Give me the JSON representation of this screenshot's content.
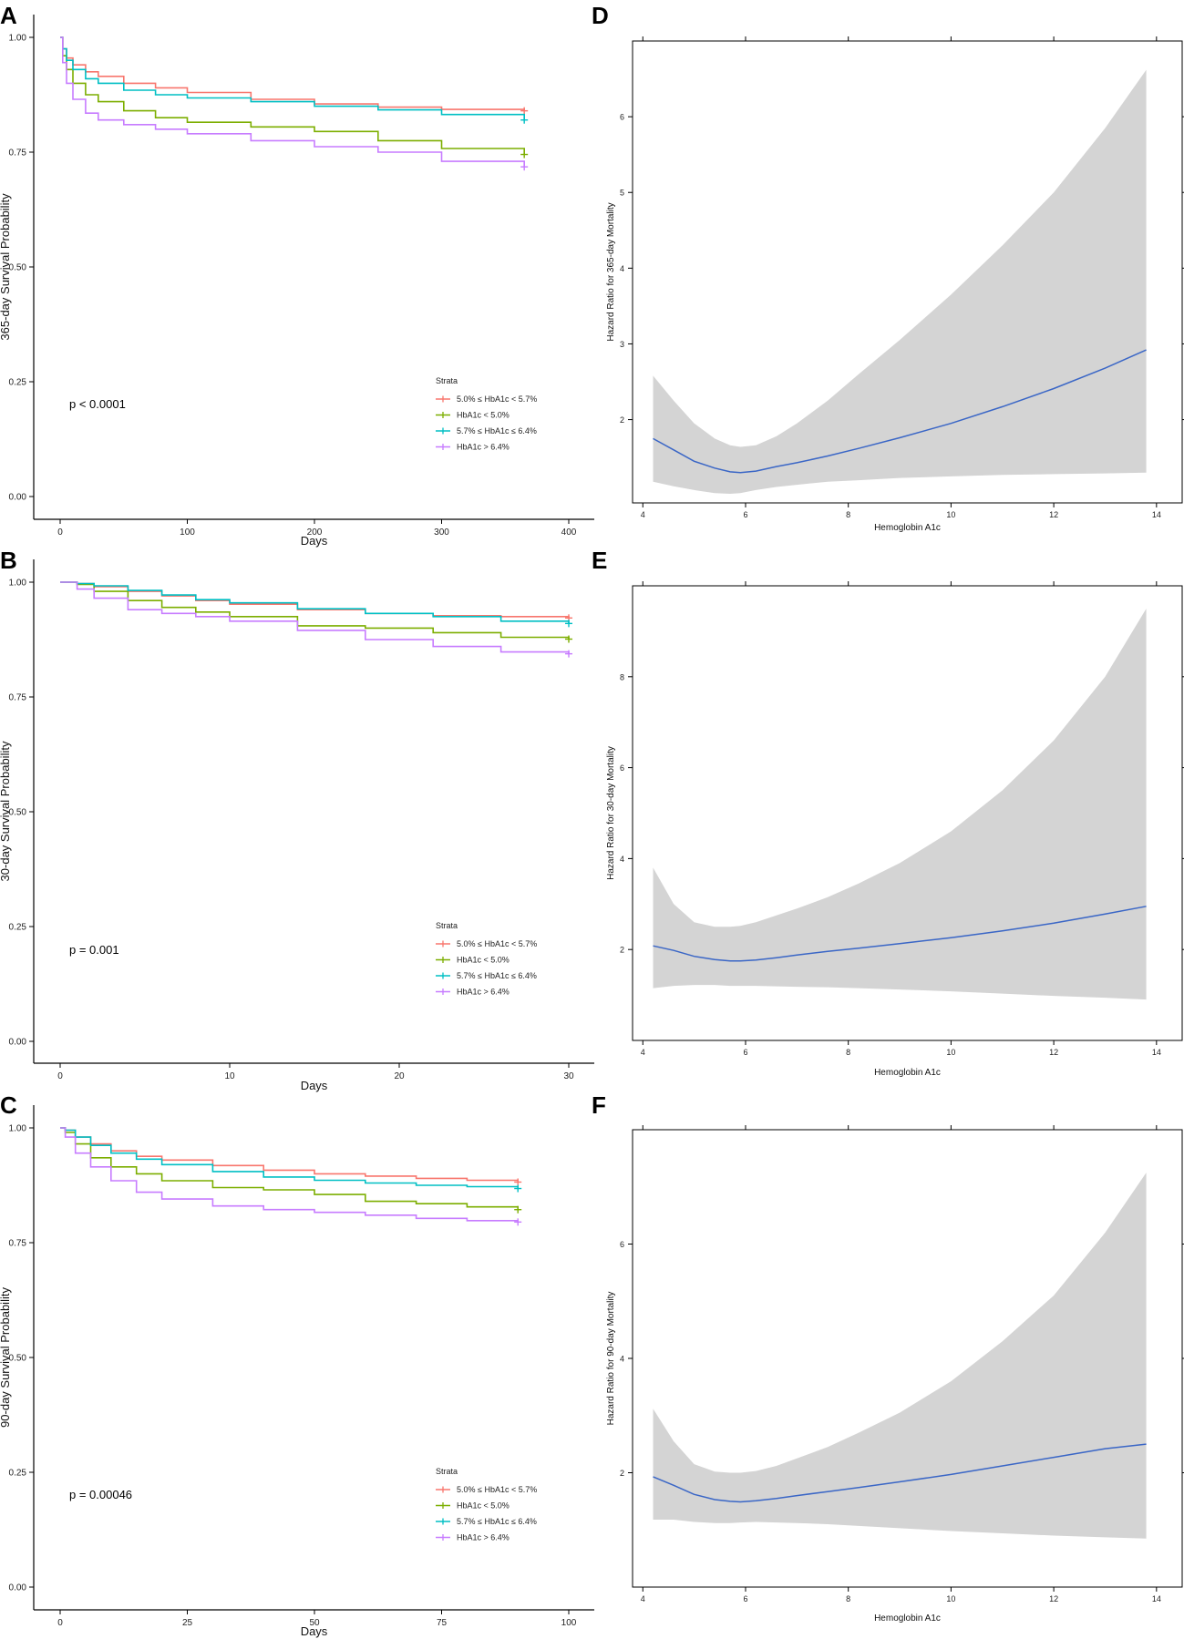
{
  "chart_data": [
    {
      "panel": "A",
      "type": "line",
      "subtype": "kaplan-meier",
      "xlabel": "Days",
      "ylabel": "365-day Survival Probability",
      "xlim": [
        0,
        400
      ],
      "ylim": [
        0,
        1
      ],
      "xticks": [
        "0",
        "100",
        "200",
        "300",
        "400"
      ],
      "yticks": [
        "0.00",
        "0.25",
        "0.50",
        "0.75",
        "1.00"
      ],
      "xtick_values": [
        0,
        100,
        200,
        300,
        400
      ],
      "ytick_values": [
        0,
        0.25,
        0.5,
        0.75,
        1.0
      ],
      "annotation": "p < 0.0001",
      "legend_title": "Strata",
      "legend_position": "bottom-right",
      "series": [
        {
          "name": "5.0% ≤ HbA1c < 5.7%",
          "color": "#F8766D",
          "x": [
            0,
            2,
            5,
            10,
            20,
            30,
            50,
            75,
            100,
            150,
            200,
            250,
            300,
            365
          ],
          "y": [
            1.0,
            0.975,
            0.955,
            0.94,
            0.925,
            0.915,
            0.9,
            0.89,
            0.88,
            0.865,
            0.855,
            0.848,
            0.843,
            0.84
          ]
        },
        {
          "name": "HbA1c < 5.0%",
          "color": "#7CAE00",
          "x": [
            0,
            2,
            5,
            10,
            20,
            30,
            50,
            75,
            100,
            150,
            200,
            250,
            300,
            365
          ],
          "y": [
            1.0,
            0.96,
            0.93,
            0.9,
            0.875,
            0.86,
            0.84,
            0.825,
            0.815,
            0.805,
            0.795,
            0.775,
            0.758,
            0.745
          ]
        },
        {
          "name": "5.7% ≤ HbA1c ≤ 6.4%",
          "color": "#00BFC4",
          "x": [
            0,
            2,
            5,
            10,
            20,
            30,
            50,
            75,
            100,
            150,
            200,
            250,
            300,
            365
          ],
          "y": [
            1.0,
            0.975,
            0.95,
            0.93,
            0.91,
            0.9,
            0.885,
            0.875,
            0.868,
            0.86,
            0.85,
            0.842,
            0.832,
            0.82
          ]
        },
        {
          "name": "HbA1c > 6.4%",
          "color": "#C77CFF",
          "x": [
            0,
            2,
            5,
            10,
            20,
            30,
            50,
            75,
            100,
            150,
            200,
            250,
            300,
            365
          ],
          "y": [
            1.0,
            0.945,
            0.9,
            0.865,
            0.835,
            0.82,
            0.81,
            0.8,
            0.79,
            0.775,
            0.762,
            0.75,
            0.73,
            0.718
          ]
        }
      ]
    },
    {
      "panel": "B",
      "type": "line",
      "subtype": "kaplan-meier",
      "xlabel": "Days",
      "ylabel": "30-day Survival Probability",
      "xlim": [
        0,
        30
      ],
      "ylim": [
        0,
        1
      ],
      "xticks": [
        "0",
        "10",
        "20",
        "30"
      ],
      "yticks": [
        "0.00",
        "0.25",
        "0.50",
        "0.75",
        "1.00"
      ],
      "xtick_values": [
        0,
        10,
        20,
        30
      ],
      "ytick_values": [
        0,
        0.25,
        0.5,
        0.75,
        1.0
      ],
      "annotation": "p = 0.001",
      "legend_title": "Strata",
      "legend_position": "bottom-right",
      "series": [
        {
          "name": "5.0% ≤ HbA1c < 5.7%",
          "color": "#F8766D",
          "x": [
            0,
            1,
            2,
            4,
            6,
            8,
            10,
            14,
            18,
            22,
            26,
            30
          ],
          "y": [
            1.0,
            0.997,
            0.99,
            0.98,
            0.97,
            0.96,
            0.952,
            0.94,
            0.932,
            0.927,
            0.925,
            0.922
          ]
        },
        {
          "name": "HbA1c < 5.0%",
          "color": "#7CAE00",
          "x": [
            0,
            1,
            2,
            4,
            6,
            8,
            10,
            14,
            18,
            22,
            26,
            30
          ],
          "y": [
            1.0,
            0.995,
            0.98,
            0.96,
            0.945,
            0.935,
            0.925,
            0.905,
            0.9,
            0.89,
            0.88,
            0.876
          ]
        },
        {
          "name": "5.7% ≤ HbA1c ≤ 6.4%",
          "color": "#00BFC4",
          "x": [
            0,
            1,
            2,
            4,
            6,
            8,
            10,
            14,
            18,
            22,
            26,
            30
          ],
          "y": [
            1.0,
            0.997,
            0.992,
            0.982,
            0.972,
            0.962,
            0.955,
            0.942,
            0.932,
            0.925,
            0.915,
            0.91
          ]
        },
        {
          "name": "HbA1c > 6.4%",
          "color": "#C77CFF",
          "x": [
            0,
            1,
            2,
            4,
            6,
            8,
            10,
            14,
            18,
            22,
            26,
            30
          ],
          "y": [
            1.0,
            0.985,
            0.965,
            0.94,
            0.932,
            0.925,
            0.915,
            0.895,
            0.875,
            0.86,
            0.848,
            0.844
          ]
        }
      ]
    },
    {
      "panel": "C",
      "type": "line",
      "subtype": "kaplan-meier",
      "xlabel": "Days",
      "ylabel": "90-day Survival Probability",
      "xlim": [
        0,
        100
      ],
      "ylim": [
        0,
        1
      ],
      "xticks": [
        "0",
        "25",
        "50",
        "75",
        "100"
      ],
      "yticks": [
        "0.00",
        "0.25",
        "0.50",
        "0.75",
        "1.00"
      ],
      "xtick_values": [
        0,
        25,
        50,
        75,
        100
      ],
      "ytick_values": [
        0,
        0.25,
        0.5,
        0.75,
        1.0
      ],
      "annotation": "p = 0.00046",
      "legend_title": "Strata",
      "legend_position": "bottom-right",
      "series": [
        {
          "name": "5.0% ≤ HbA1c < 5.7%",
          "color": "#F8766D",
          "x": [
            0,
            1,
            3,
            6,
            10,
            15,
            20,
            30,
            40,
            50,
            60,
            70,
            80,
            90
          ],
          "y": [
            1.0,
            0.995,
            0.98,
            0.965,
            0.95,
            0.938,
            0.93,
            0.918,
            0.908,
            0.9,
            0.895,
            0.89,
            0.886,
            0.882
          ]
        },
        {
          "name": "HbA1c < 5.0%",
          "color": "#7CAE00",
          "x": [
            0,
            1,
            3,
            6,
            10,
            15,
            20,
            30,
            40,
            50,
            60,
            70,
            80,
            90
          ],
          "y": [
            1.0,
            0.99,
            0.965,
            0.935,
            0.915,
            0.9,
            0.885,
            0.87,
            0.865,
            0.855,
            0.84,
            0.835,
            0.828,
            0.822
          ]
        },
        {
          "name": "5.7% ≤ HbA1c ≤ 6.4%",
          "color": "#00BFC4",
          "x": [
            0,
            1,
            3,
            6,
            10,
            15,
            20,
            30,
            40,
            50,
            60,
            70,
            80,
            90
          ],
          "y": [
            1.0,
            0.995,
            0.98,
            0.962,
            0.945,
            0.932,
            0.92,
            0.905,
            0.893,
            0.886,
            0.88,
            0.875,
            0.872,
            0.868
          ]
        },
        {
          "name": "HbA1c > 6.4%",
          "color": "#C77CFF",
          "x": [
            0,
            1,
            3,
            6,
            10,
            15,
            20,
            30,
            40,
            50,
            60,
            70,
            80,
            90
          ],
          "y": [
            1.0,
            0.98,
            0.945,
            0.915,
            0.885,
            0.86,
            0.845,
            0.83,
            0.822,
            0.816,
            0.81,
            0.803,
            0.798,
            0.795
          ]
        }
      ]
    },
    {
      "panel": "D",
      "type": "area",
      "subtype": "restricted-cubic-spline",
      "xlabel": "Hemoglobin A1c",
      "ylabel": "Hazard Ratio for 365-day Mortality",
      "xlim": [
        3.8,
        14.5
      ],
      "ylim": [
        0.9,
        7.0
      ],
      "xticks": [
        "4",
        "6",
        "8",
        "10",
        "12",
        "14"
      ],
      "yticks": [
        "2",
        "3",
        "4",
        "5",
        "6"
      ],
      "xtick_values": [
        4,
        6,
        8,
        10,
        12,
        14
      ],
      "ytick_values": [
        2,
        3,
        4,
        5,
        6
      ],
      "line_color": "#3A66C6",
      "band_color": "#D4D4D4",
      "x": [
        4.2,
        4.6,
        5.0,
        5.4,
        5.7,
        5.9,
        6.2,
        6.6,
        7.0,
        7.6,
        8.2,
        9.0,
        10.0,
        11.0,
        12.0,
        13.0,
        13.8
      ],
      "hr": [
        1.75,
        1.6,
        1.45,
        1.36,
        1.31,
        1.3,
        1.32,
        1.38,
        1.43,
        1.52,
        1.62,
        1.76,
        1.95,
        2.17,
        2.41,
        2.68,
        2.92
      ],
      "lower": [
        1.18,
        1.12,
        1.07,
        1.03,
        1.02,
        1.03,
        1.07,
        1.11,
        1.14,
        1.18,
        1.2,
        1.23,
        1.25,
        1.27,
        1.28,
        1.29,
        1.3
      ],
      "upper": [
        2.58,
        2.25,
        1.95,
        1.75,
        1.66,
        1.64,
        1.66,
        1.78,
        1.95,
        2.25,
        2.6,
        3.05,
        3.65,
        4.3,
        5.0,
        5.85,
        6.62
      ]
    },
    {
      "panel": "E",
      "type": "area",
      "subtype": "restricted-cubic-spline",
      "xlabel": "Hemoglobin A1c",
      "ylabel": "Hazard Ratio for 30-day Mortality",
      "xlim": [
        3.8,
        14.5
      ],
      "ylim": [
        0,
        10
      ],
      "xticks": [
        "4",
        "6",
        "8",
        "10",
        "12",
        "14"
      ],
      "yticks": [
        "2",
        "4",
        "6",
        "8"
      ],
      "xtick_values": [
        4,
        6,
        8,
        10,
        12,
        14
      ],
      "ytick_values": [
        2,
        4,
        6,
        8
      ],
      "line_color": "#3A66C6",
      "band_color": "#D4D4D4",
      "x": [
        4.2,
        4.6,
        5.0,
        5.4,
        5.7,
        5.9,
        6.2,
        6.6,
        7.0,
        7.6,
        8.2,
        9.0,
        10.0,
        11.0,
        12.0,
        13.0,
        13.8
      ],
      "hr": [
        2.08,
        1.98,
        1.85,
        1.78,
        1.75,
        1.75,
        1.77,
        1.82,
        1.88,
        1.96,
        2.03,
        2.13,
        2.26,
        2.41,
        2.58,
        2.78,
        2.95
      ],
      "lower": [
        1.15,
        1.2,
        1.22,
        1.22,
        1.2,
        1.2,
        1.2,
        1.19,
        1.18,
        1.17,
        1.15,
        1.12,
        1.08,
        1.03,
        0.98,
        0.94,
        0.9
      ],
      "upper": [
        3.8,
        3.0,
        2.6,
        2.5,
        2.5,
        2.52,
        2.6,
        2.75,
        2.9,
        3.15,
        3.45,
        3.9,
        4.6,
        5.5,
        6.6,
        8.0,
        9.5
      ]
    },
    {
      "panel": "F",
      "type": "area",
      "subtype": "restricted-cubic-spline",
      "xlabel": "Hemoglobin A1c",
      "ylabel": "Hazard Ratio for 90-day Mortality",
      "xlim": [
        3.8,
        14.5
      ],
      "ylim": [
        0,
        8
      ],
      "xticks": [
        "4",
        "6",
        "8",
        "10",
        "12",
        "14"
      ],
      "yticks": [
        "2",
        "4",
        "6"
      ],
      "xtick_values": [
        4,
        6,
        8,
        10,
        12,
        14
      ],
      "ytick_values": [
        2,
        4,
        6
      ],
      "line_color": "#3A66C6",
      "band_color": "#D4D4D4",
      "x": [
        4.2,
        4.6,
        5.0,
        5.4,
        5.7,
        5.9,
        6.2,
        6.6,
        7.0,
        7.6,
        8.2,
        9.0,
        10.0,
        11.0,
        12.0,
        13.0,
        13.8
      ],
      "hr": [
        1.93,
        1.78,
        1.62,
        1.53,
        1.5,
        1.49,
        1.51,
        1.55,
        1.6,
        1.67,
        1.74,
        1.84,
        1.97,
        2.12,
        2.27,
        2.42,
        2.5
      ],
      "lower": [
        1.18,
        1.18,
        1.14,
        1.12,
        1.12,
        1.13,
        1.14,
        1.13,
        1.12,
        1.1,
        1.07,
        1.03,
        0.98,
        0.94,
        0.9,
        0.87,
        0.85
      ],
      "upper": [
        3.12,
        2.55,
        2.15,
        2.02,
        2.0,
        2.0,
        2.03,
        2.12,
        2.25,
        2.45,
        2.7,
        3.05,
        3.6,
        4.3,
        5.1,
        6.2,
        7.25
      ]
    }
  ]
}
